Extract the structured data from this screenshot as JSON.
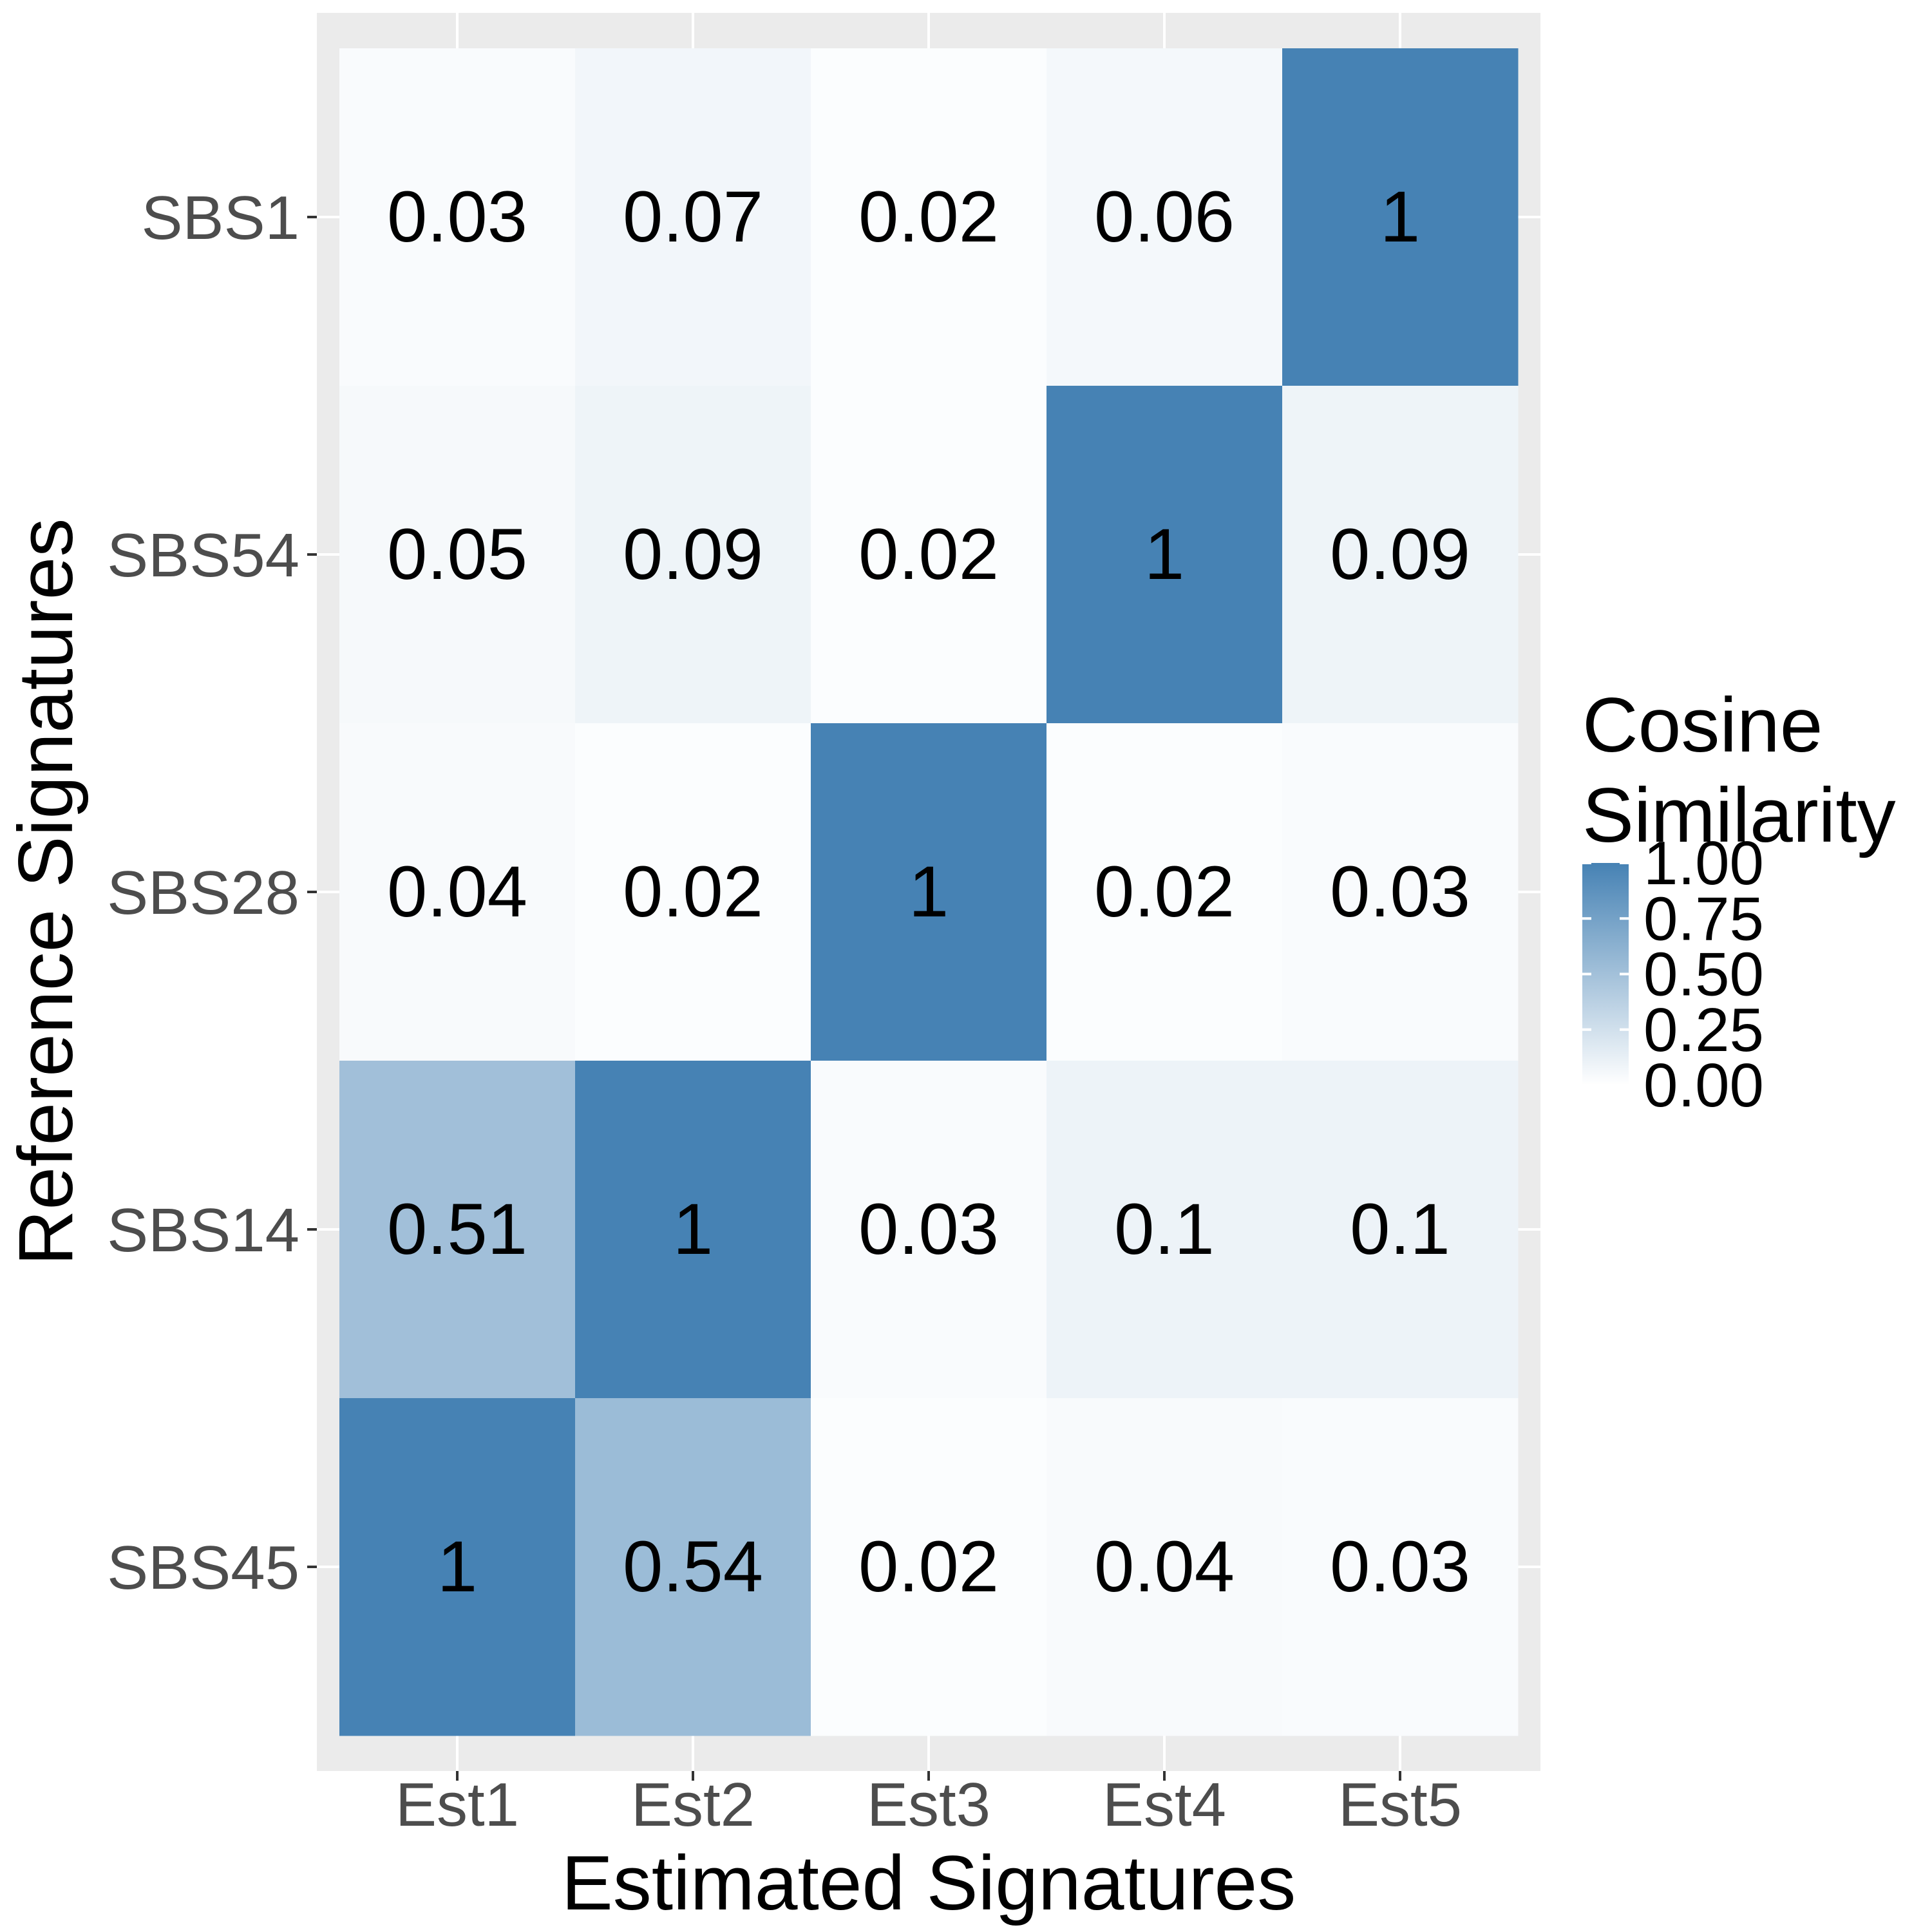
{
  "chart_data": {
    "type": "heatmap",
    "x_categories": [
      "Est1",
      "Est2",
      "Est3",
      "Est4",
      "Est5"
    ],
    "y_categories": [
      "SBS1",
      "SBS54",
      "SBS28",
      "SBS14",
      "SBS45"
    ],
    "values": [
      [
        0.03,
        0.07,
        0.02,
        0.06,
        1
      ],
      [
        0.05,
        0.09,
        0.02,
        1,
        0.09
      ],
      [
        0.04,
        0.02,
        1,
        0.02,
        0.03
      ],
      [
        0.51,
        1,
        0.03,
        0.1,
        0.1
      ],
      [
        1,
        0.54,
        0.02,
        0.04,
        0.03
      ]
    ],
    "xlabel": "Estimated Signatures",
    "ylabel": "Reference Signatures",
    "legend": {
      "title_lines": [
        "Cosine",
        "Similarity"
      ],
      "ticks": [
        1.0,
        0.75,
        0.5,
        0.25,
        0.0
      ],
      "tick_labels": [
        "1.00",
        "0.75",
        "0.50",
        "0.25",
        "0.00"
      ],
      "range": [
        0,
        1
      ],
      "position": "right"
    },
    "color_low": "#ffffff",
    "color_high": "#4682b4",
    "panel_background": "#ebebeb",
    "grid_color": "#ffffff",
    "grid": true
  }
}
